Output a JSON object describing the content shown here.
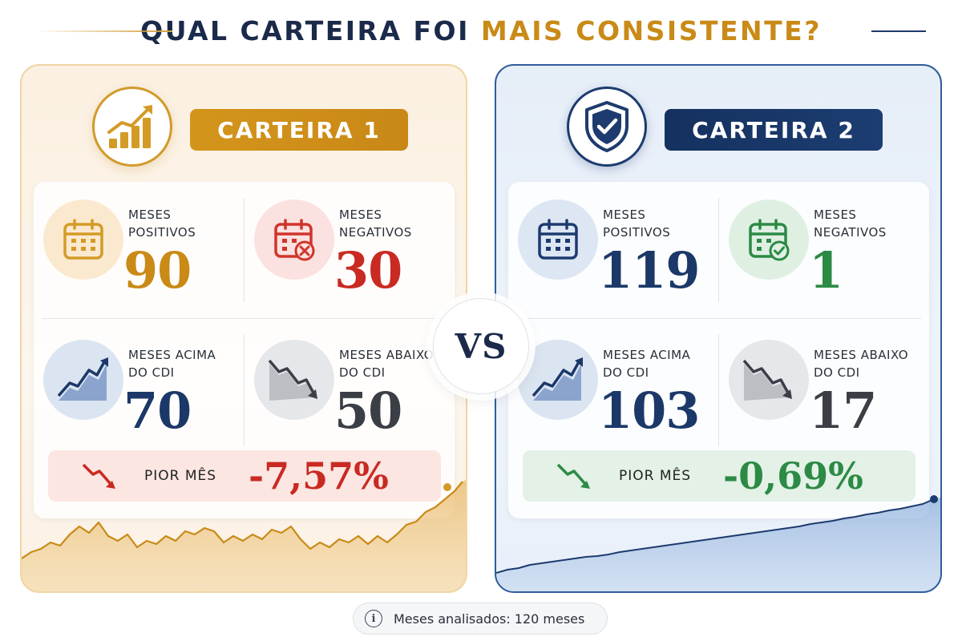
{
  "header": {
    "title_part1": "QUAL CARTEIRA FOI ",
    "title_part2": "MAIS CONSISTENTE?"
  },
  "colors": {
    "gold": "#c98a17",
    "navy": "#1b2a4a",
    "red": "#c92a22",
    "green": "#2c8a45"
  },
  "vs_label": "VS",
  "portfolios": [
    {
      "name": "CARTEIRA 1",
      "icon": "bar-chart-growth-icon",
      "stats": [
        {
          "label": "MESES\nPOSITIVOS",
          "value": "90",
          "icon": "calendar-icon"
        },
        {
          "label": "MESES\nNEGATIVOS",
          "value": "30",
          "icon": "calendar-x-icon"
        },
        {
          "label": "MESES ACIMA\nDO CDI",
          "value": "70",
          "icon": "trend-up-icon"
        },
        {
          "label": "MESES ABAIXO\nDO CDI",
          "value": "50",
          "icon": "trend-down-icon"
        }
      ],
      "worst_month": {
        "label": "PIOR MÊS",
        "value": "-7,57%",
        "icon": "arrow-down-icon"
      }
    },
    {
      "name": "CARTEIRA 2",
      "icon": "shield-check-icon",
      "stats": [
        {
          "label": "MESES\nPOSITIVOS",
          "value": "119",
          "icon": "calendar-icon"
        },
        {
          "label": "MESES\nNEGATIVOS",
          "value": "1",
          "icon": "calendar-check-icon"
        },
        {
          "label": "MESES ACIMA\nDO CDI",
          "value": "103",
          "icon": "trend-up-icon"
        },
        {
          "label": "MESES ABAIXO\nDO CDI",
          "value": "17",
          "icon": "trend-down-icon"
        }
      ],
      "worst_month": {
        "label": "PIOR MÊS",
        "value": "-0,69%",
        "icon": "arrow-down-icon"
      }
    }
  ],
  "footer": {
    "info_icon": "info-icon",
    "text": "Meses analisados: 120 meses"
  }
}
